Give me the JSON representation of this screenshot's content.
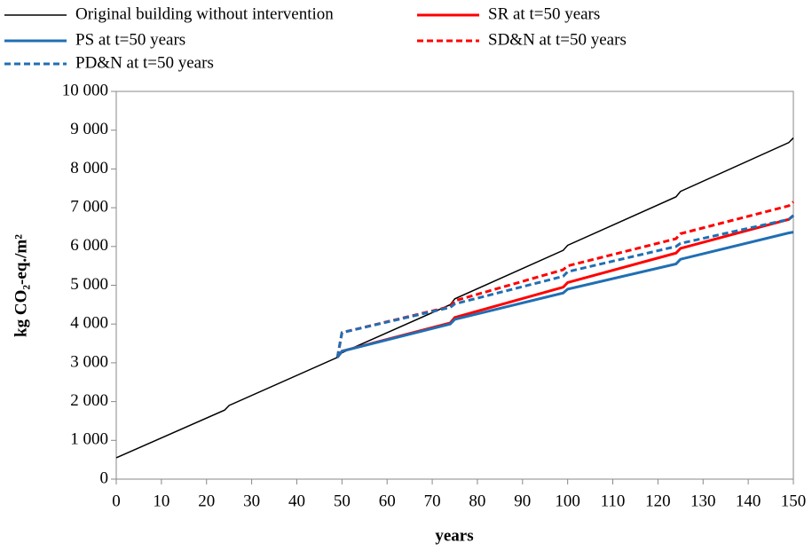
{
  "chart_data": {
    "type": "line",
    "xlabel": "years",
    "ylabel": "kg CO₂-eq./m²",
    "x": [
      0,
      24,
      25,
      49,
      50,
      74,
      75,
      99,
      100,
      124,
      125,
      149,
      150
    ],
    "xlim": [
      0,
      150
    ],
    "xticks": [
      0,
      10,
      20,
      30,
      40,
      50,
      60,
      70,
      80,
      90,
      100,
      110,
      120,
      130,
      140,
      150
    ],
    "ylim": [
      0,
      10000
    ],
    "yticks": [
      0,
      {
        "value": 1000,
        "label": "1 000"
      },
      {
        "value": 2000,
        "label": "2 000"
      },
      {
        "value": 3000,
        "label": "3 000"
      },
      {
        "value": 4000,
        "label": "4 000"
      },
      {
        "value": 5000,
        "label": "5 000"
      },
      {
        "value": 6000,
        "label": "6 000"
      },
      {
        "value": 7000,
        "label": "7 000"
      },
      {
        "value": 8000,
        "label": "8 000"
      },
      {
        "value": 9000,
        "label": "9 000"
      },
      {
        "value": 10000,
        "label": "10 000"
      }
    ],
    "grid": false,
    "series": [
      {
        "name": "Original building without intervention",
        "color": "#000000",
        "line_style": "solid",
        "values": [
          550,
          1780,
          1900,
          3140,
          3260,
          4500,
          4650,
          5900,
          6030,
          7280,
          7420,
          8680,
          8800
        ]
      },
      {
        "name": "SR at t=50 years",
        "color": "#ff0000",
        "line_style": "solid",
        "values": [
          null,
          null,
          null,
          3140,
          3300,
          4030,
          4170,
          4950,
          5070,
          5830,
          5950,
          6700,
          6800
        ]
      },
      {
        "name": "PS at t=50 years",
        "color": "#1f6fb4",
        "line_style": "solid",
        "values": [
          null,
          null,
          null,
          3140,
          3300,
          4000,
          4120,
          4800,
          4900,
          5550,
          5670,
          6350,
          6370
        ]
      },
      {
        "name": "SD&N at t=50 years",
        "color": "#ff0000",
        "line_style": "dashed",
        "values": [
          null,
          null,
          null,
          3140,
          3780,
          4450,
          4600,
          5400,
          5500,
          6200,
          6330,
          7050,
          7150
        ]
      },
      {
        "name": "PD&N at t=50 years",
        "color": "#1f6fb4",
        "line_style": "dashed",
        "values": [
          null,
          null,
          null,
          3140,
          3780,
          4430,
          4520,
          5230,
          5350,
          6000,
          6080,
          6700,
          6800
        ]
      }
    ]
  }
}
